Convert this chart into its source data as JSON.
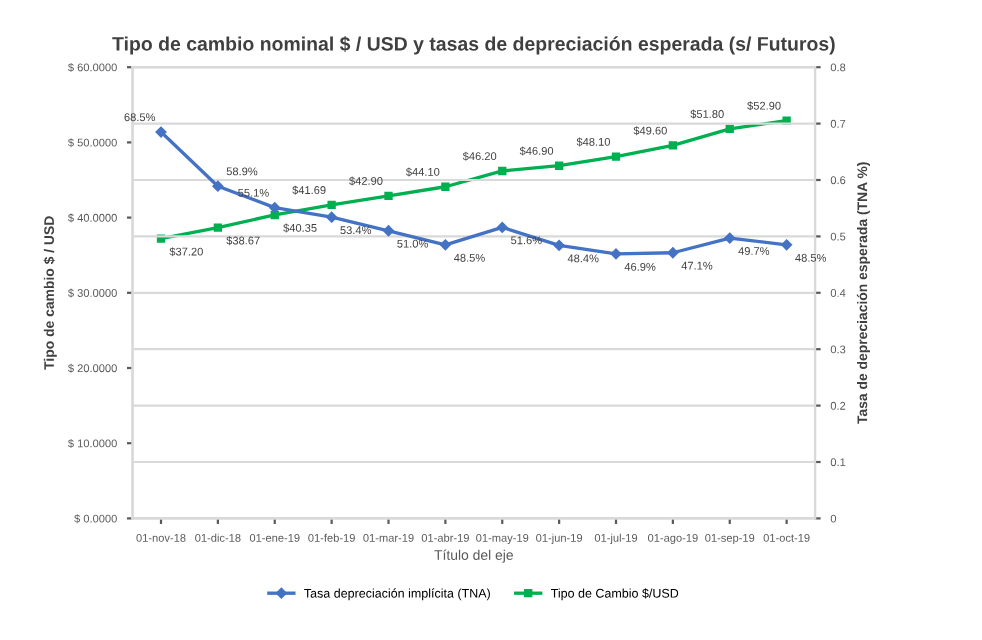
{
  "chart_data": {
    "type": "line",
    "title": "Tipo de cambio nominal $ / USD y tasas de depreciación esperada (s/ Futuros)",
    "xlabel": "Título del eje",
    "ylabel": "Tipo de cambio $ / USD",
    "y2label": "Tasa de depreciación esperada (TNA %)",
    "categories": [
      "01-nov-18",
      "01-dic-18",
      "01-ene-19",
      "01-feb-19",
      "01-mar-19",
      "01-abr-19",
      "01-may-19",
      "01-jun-19",
      "01-jul-19",
      "01-ago-19",
      "01-sep-19",
      "01-oct-19"
    ],
    "series": [
      {
        "name": "Tasa depreciación implícita (TNA)",
        "color": "#4472c4",
        "axis": "y2",
        "marker": "diamond",
        "values": [
          0.685,
          0.589,
          0.551,
          0.534,
          0.51,
          0.485,
          0.516,
          0.484,
          0.469,
          0.471,
          0.497,
          0.485
        ],
        "value_labels": [
          "68.5%",
          "58.9%",
          "55.1%",
          "53.4%",
          "51.0%",
          "48.5%",
          "51.6%",
          "48.4%",
          "46.9%",
          "47.1%",
          "49.7%",
          "48.5%"
        ]
      },
      {
        "name": "Tipo de Cambio $/USD",
        "color": "#00b050",
        "marker": "square",
        "values": [
          37.2,
          38.67,
          40.35,
          41.69,
          42.9,
          44.1,
          46.2,
          46.9,
          48.1,
          49.6,
          51.8,
          52.9
        ],
        "value_labels": [
          "$37.20",
          "$38.67",
          "$40.35",
          "$41.69",
          "$42.90",
          "$44.10",
          "$46.20",
          "$46.90",
          "$48.10",
          "$49.60",
          "$51.80",
          "$52.90"
        ]
      }
    ],
    "ylim": [
      0,
      60
    ],
    "yticks": [
      {
        "value": 0,
        "label": "$ 0.0000"
      },
      {
        "value": 10,
        "label": "$ 10.0000"
      },
      {
        "value": 20,
        "label": "$ 20.0000"
      },
      {
        "value": 30,
        "label": "$ 30.0000"
      },
      {
        "value": 40,
        "label": "$ 40.0000"
      },
      {
        "value": 50,
        "label": "$ 50.0000"
      },
      {
        "value": 60,
        "label": "$ 60.0000"
      }
    ],
    "y2lim": [
      0,
      0.8
    ],
    "y2ticks": [
      0,
      0.1,
      0.2,
      0.3,
      0.4,
      0.5,
      0.6,
      0.7,
      0.8
    ],
    "grid": "y",
    "legend": "bottom"
  }
}
